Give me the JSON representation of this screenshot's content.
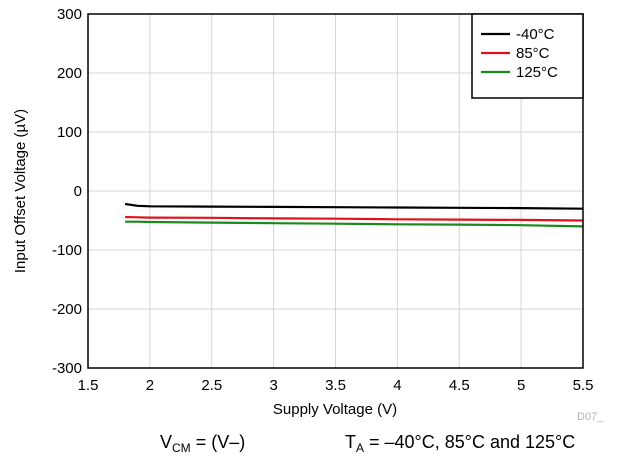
{
  "chart_data": {
    "type": "line",
    "title": "",
    "xlabel": "Supply Voltage (V)",
    "ylabel": "Input Offset Voltage (µV)",
    "xlim": [
      1.5,
      5.5
    ],
    "ylim": [
      -300,
      300
    ],
    "x_ticks": [
      "1.5",
      "2",
      "2.5",
      "3",
      "3.5",
      "4",
      "4.5",
      "5",
      "5.5"
    ],
    "y_ticks": [
      "300",
      "200",
      "100",
      "0",
      "-100",
      "-200",
      "-300"
    ],
    "grid": true,
    "legend_position": "top-right",
    "figure_code": "D07_",
    "x": [
      1.8,
      1.9,
      2.0,
      2.5,
      3.0,
      3.5,
      4.0,
      4.5,
      5.0,
      5.5
    ],
    "series": [
      {
        "name": "-40°C",
        "color": "#000000",
        "values": [
          -22,
          -25,
          -26,
          -26.5,
          -27,
          -27.5,
          -28,
          -28.5,
          -29,
          -30
        ]
      },
      {
        "name": "85°C",
        "color": "#e0121a",
        "values": [
          -44,
          -44.5,
          -45,
          -45.5,
          -46.5,
          -47,
          -48,
          -48.5,
          -49,
          -50
        ]
      },
      {
        "name": "125°C",
        "color": "#1a8a1a",
        "values": [
          -52,
          -52,
          -52.5,
          -53.5,
          -54.5,
          -55.5,
          -56.5,
          -57,
          -58,
          -60
        ]
      }
    ]
  },
  "conditions": {
    "vcm_label": "V",
    "vcm_sub": "CM",
    "vcm_value": " = (V–)",
    "ta_label": "T",
    "ta_sub": "A",
    "ta_value": " = –40°C, 85°C and 125°C"
  }
}
